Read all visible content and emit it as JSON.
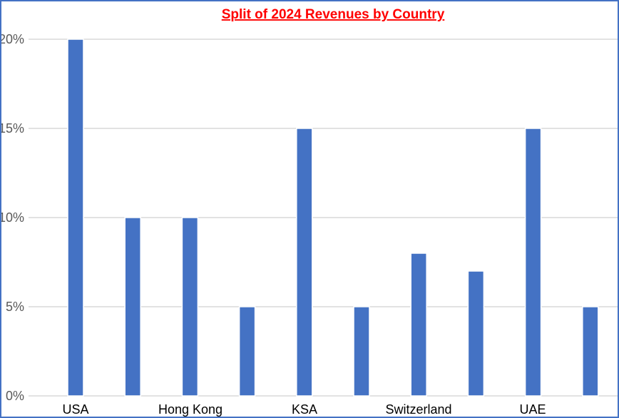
{
  "chart_data": {
    "type": "bar",
    "title": "Split of 2024 Revenues by Country",
    "xlabel": "",
    "ylabel": "",
    "categories": [
      "USA",
      "",
      "Hong Kong",
      "",
      "KSA",
      "",
      "Switzerland",
      "",
      "UAE",
      ""
    ],
    "values": [
      20,
      10,
      10,
      5,
      15,
      5,
      8,
      7,
      15,
      5
    ],
    "value_unit": "%",
    "ylim": [
      0,
      20
    ],
    "yticks": [
      "0%",
      "5%",
      "10%",
      "15%",
      "20%"
    ],
    "grid": true,
    "legend": "none"
  },
  "colors": {
    "bar": "#4472c4",
    "title": "#ff0000",
    "frame": "#4472c4",
    "grid": "#d9d9d9"
  }
}
